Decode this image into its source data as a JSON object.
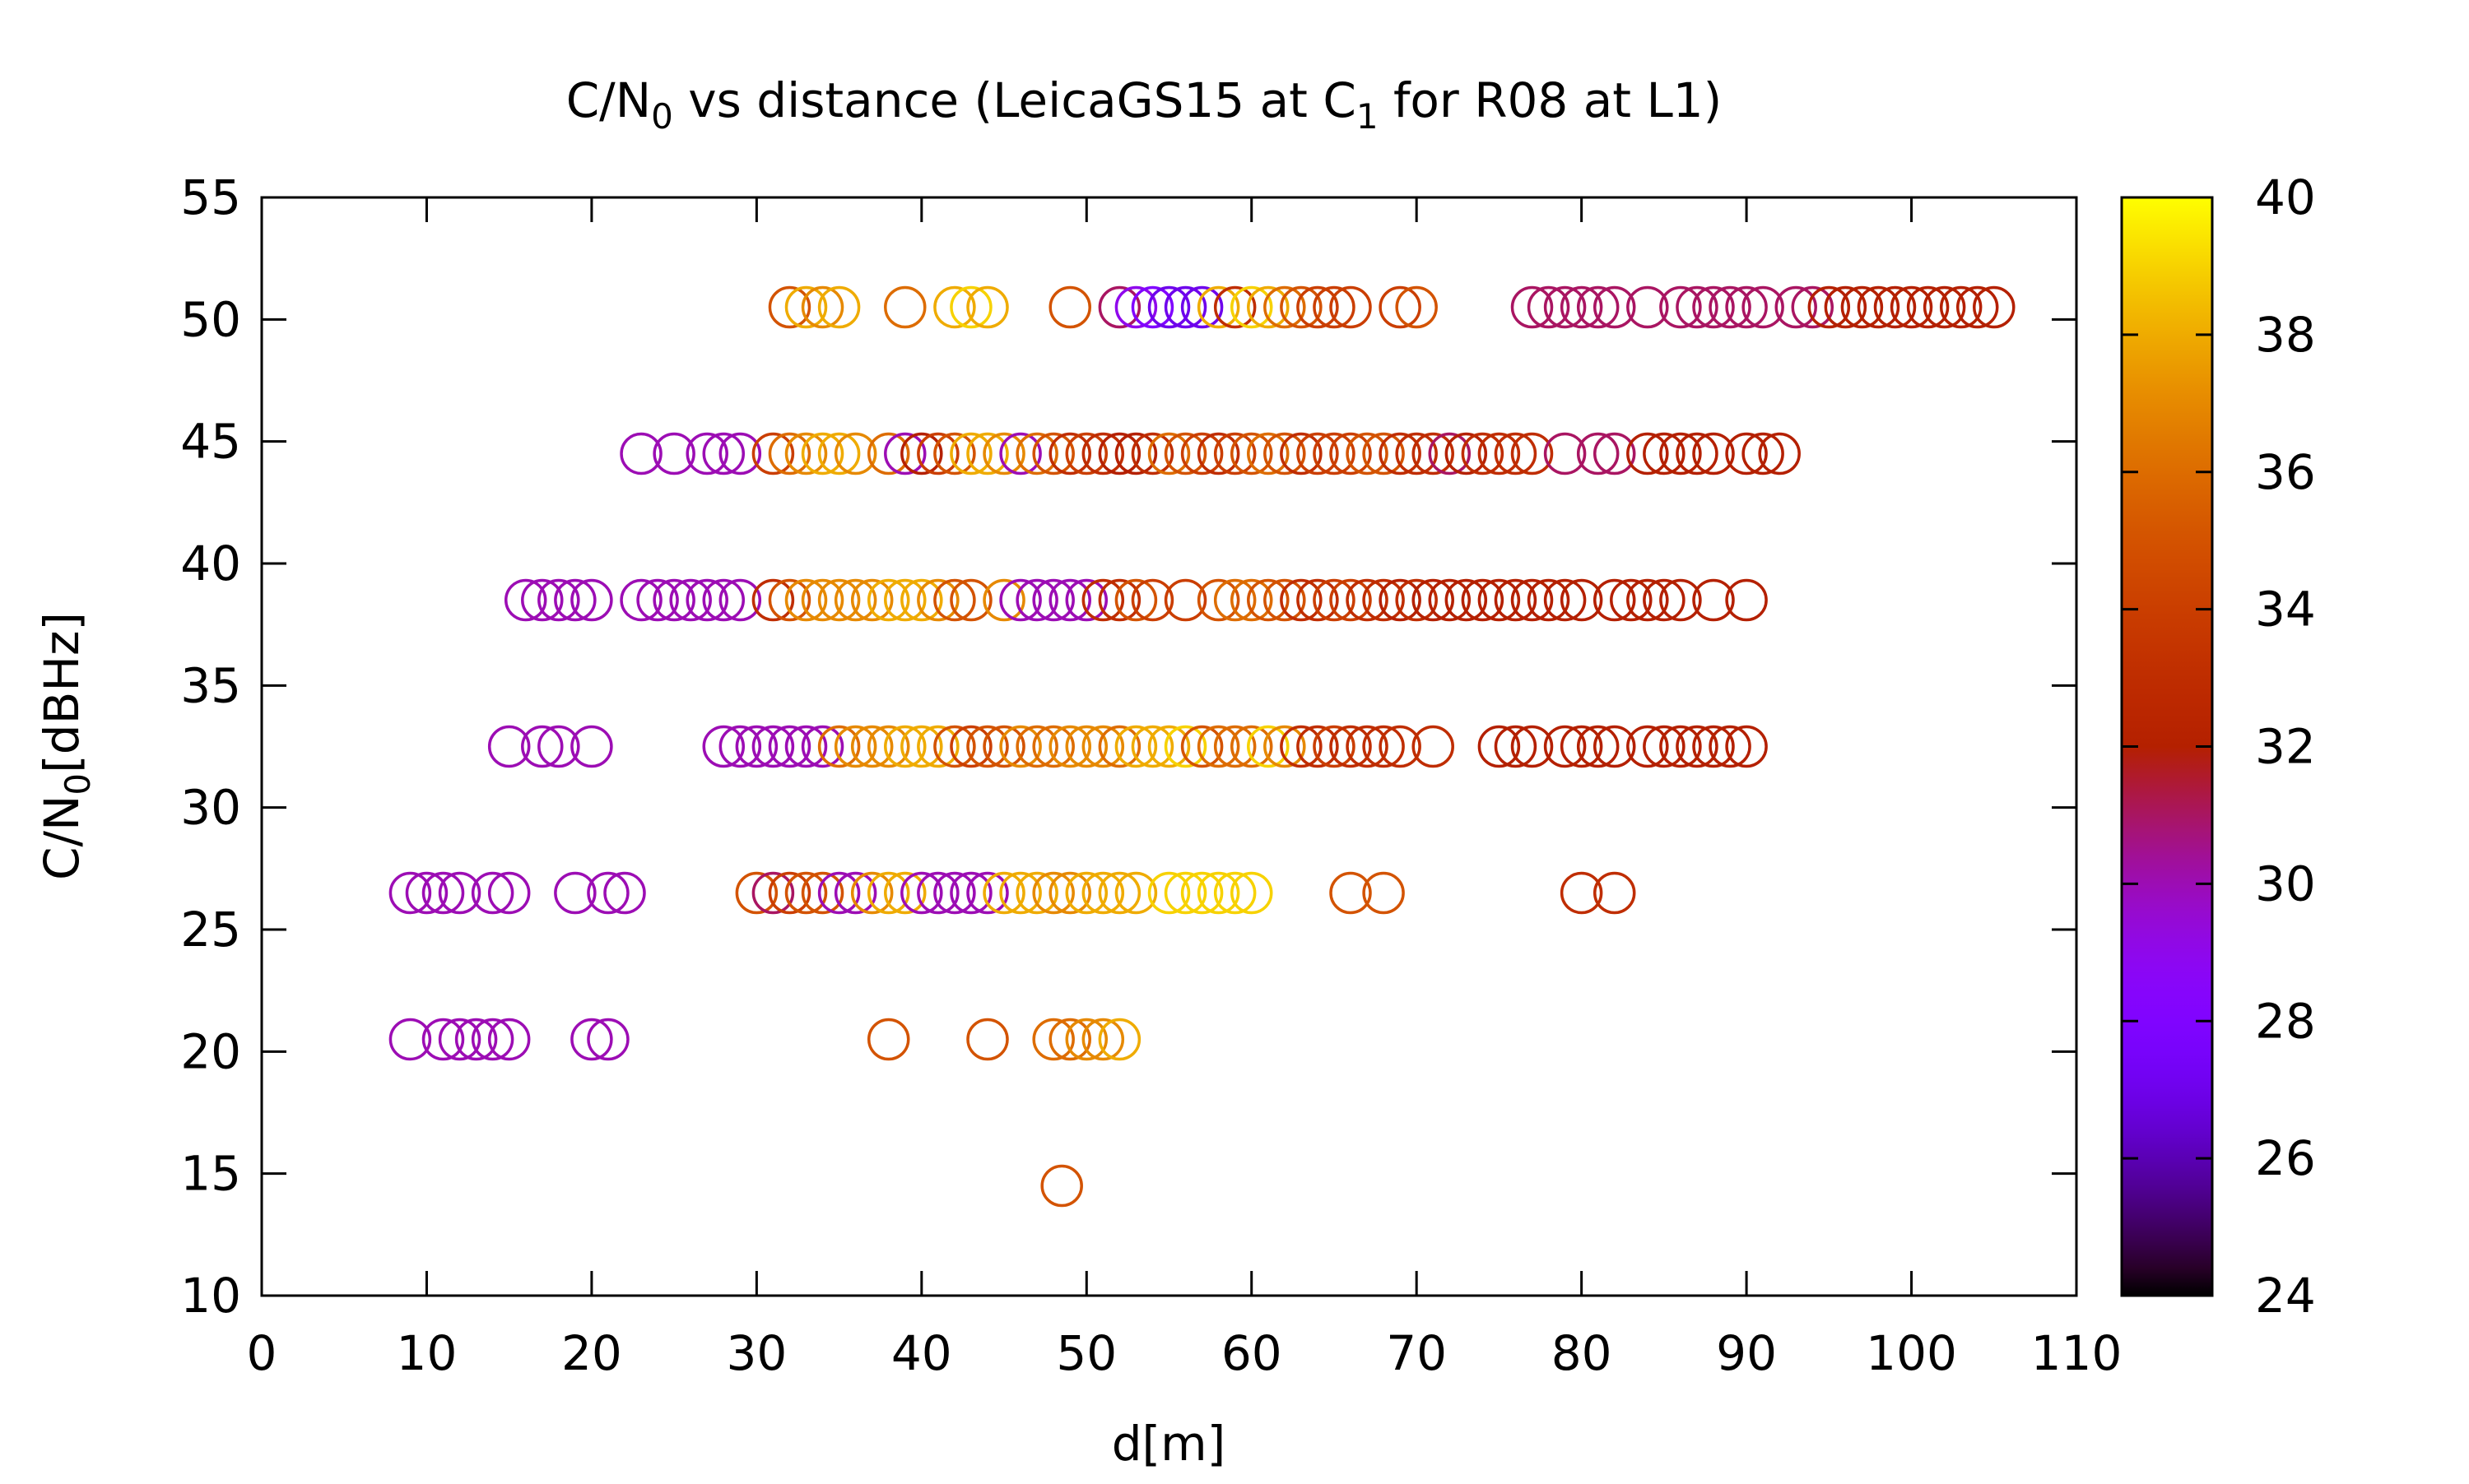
{
  "chart_data": {
    "type": "scatter",
    "title": {
      "pre": "C/N",
      "sub": "0",
      "mid": " vs distance (LeicaGS15 at C",
      "sub2": "1",
      "post": " for R08 at L1)"
    },
    "xlabel": "d[m]",
    "ylabel": {
      "pre": "C/N",
      "sub": "0",
      "post": "[dBHz]"
    },
    "xlim": [
      0,
      110
    ],
    "ylim": [
      10,
      55
    ],
    "xticks": [
      0,
      10,
      20,
      30,
      40,
      50,
      60,
      70,
      80,
      90,
      100,
      110
    ],
    "yticks": [
      10,
      15,
      20,
      25,
      30,
      35,
      40,
      45,
      50,
      55
    ],
    "colorbar": {
      "range": [
        24,
        40
      ],
      "ticks": [
        24,
        26,
        28,
        30,
        32,
        34,
        36,
        38,
        40
      ],
      "palette": "gnuplot"
    },
    "marker": "open-circle",
    "grid": false,
    "legend": "none",
    "rows": [
      {
        "y": 50.5,
        "points": [
          [
            32,
            35
          ],
          [
            33,
            38
          ],
          [
            34,
            37
          ],
          [
            35,
            38
          ],
          [
            39,
            36
          ],
          [
            42,
            38
          ],
          [
            43,
            39
          ],
          [
            44,
            38
          ],
          [
            49,
            35
          ],
          [
            52,
            31
          ],
          [
            53,
            29
          ],
          [
            54,
            28
          ],
          [
            55,
            27
          ],
          [
            56,
            27
          ],
          [
            57,
            27
          ],
          [
            58,
            38
          ],
          [
            59,
            33
          ],
          [
            60,
            39
          ],
          [
            61,
            38
          ],
          [
            62,
            36
          ],
          [
            63,
            35
          ],
          [
            64,
            34
          ],
          [
            65,
            34
          ],
          [
            66,
            34
          ],
          [
            69,
            34
          ],
          [
            70,
            35
          ],
          [
            77,
            31
          ],
          [
            78,
            31
          ],
          [
            79,
            31
          ],
          [
            80,
            31
          ],
          [
            81,
            31
          ],
          [
            82,
            31
          ],
          [
            84,
            31
          ],
          [
            86,
            31
          ],
          [
            87,
            31
          ],
          [
            88,
            31
          ],
          [
            89,
            31
          ],
          [
            90,
            31
          ],
          [
            91,
            31
          ],
          [
            93,
            31
          ],
          [
            94,
            31
          ],
          [
            95,
            32
          ],
          [
            96,
            32
          ],
          [
            97,
            32
          ],
          [
            98,
            32
          ],
          [
            99,
            32
          ],
          [
            100,
            32
          ],
          [
            101,
            32
          ],
          [
            102,
            32
          ],
          [
            103,
            32
          ],
          [
            104,
            32
          ],
          [
            105,
            32
          ]
        ]
      },
      {
        "y": 44.5,
        "points": [
          [
            23,
            30
          ],
          [
            25,
            30
          ],
          [
            27,
            30
          ],
          [
            28,
            30
          ],
          [
            29,
            30
          ],
          [
            31,
            34
          ],
          [
            32,
            36
          ],
          [
            33,
            37
          ],
          [
            34,
            38
          ],
          [
            35,
            38
          ],
          [
            36,
            37
          ],
          [
            38,
            36
          ],
          [
            39,
            30
          ],
          [
            40,
            32
          ],
          [
            41,
            34
          ],
          [
            42,
            35
          ],
          [
            43,
            38
          ],
          [
            44,
            38
          ],
          [
            45,
            37
          ],
          [
            46,
            30
          ],
          [
            47,
            36
          ],
          [
            48,
            35
          ],
          [
            49,
            33
          ],
          [
            50,
            34
          ],
          [
            51,
            33
          ],
          [
            52,
            32
          ],
          [
            53,
            32
          ],
          [
            54,
            33
          ],
          [
            55,
            36
          ],
          [
            56,
            35
          ],
          [
            57,
            34
          ],
          [
            58,
            33
          ],
          [
            59,
            34
          ],
          [
            60,
            35
          ],
          [
            61,
            36
          ],
          [
            62,
            35
          ],
          [
            63,
            33
          ],
          [
            64,
            34
          ],
          [
            65,
            34
          ],
          [
            66,
            34
          ],
          [
            67,
            35
          ],
          [
            68,
            35
          ],
          [
            69,
            33
          ],
          [
            70,
            33
          ],
          [
            71,
            33
          ],
          [
            72,
            31
          ],
          [
            73,
            32
          ],
          [
            74,
            33
          ],
          [
            75,
            33
          ],
          [
            76,
            33
          ],
          [
            77,
            33
          ],
          [
            79,
            31
          ],
          [
            81,
            31
          ],
          [
            82,
            31
          ],
          [
            84,
            32
          ],
          [
            85,
            32
          ],
          [
            86,
            32
          ],
          [
            87,
            32
          ],
          [
            88,
            32
          ],
          [
            90,
            32
          ],
          [
            91,
            32
          ],
          [
            92,
            32
          ]
        ]
      },
      {
        "y": 38.5,
        "points": [
          [
            16,
            30
          ],
          [
            17,
            30
          ],
          [
            18,
            30
          ],
          [
            19,
            30
          ],
          [
            20,
            30
          ],
          [
            23,
            30
          ],
          [
            24,
            30
          ],
          [
            25,
            30
          ],
          [
            26,
            30
          ],
          [
            27,
            30
          ],
          [
            28,
            30
          ],
          [
            29,
            30
          ],
          [
            31,
            33
          ],
          [
            32,
            35
          ],
          [
            33,
            37
          ],
          [
            34,
            37
          ],
          [
            35,
            37
          ],
          [
            36,
            37
          ],
          [
            37,
            37
          ],
          [
            38,
            38
          ],
          [
            39,
            38
          ],
          [
            40,
            38
          ],
          [
            41,
            37
          ],
          [
            42,
            35
          ],
          [
            43,
            35
          ],
          [
            45,
            37
          ],
          [
            46,
            30
          ],
          [
            47,
            30
          ],
          [
            48,
            30
          ],
          [
            49,
            30
          ],
          [
            50,
            30
          ],
          [
            51,
            33
          ],
          [
            52,
            33
          ],
          [
            53,
            35
          ],
          [
            54,
            34
          ],
          [
            56,
            34
          ],
          [
            58,
            35
          ],
          [
            59,
            36
          ],
          [
            60,
            36
          ],
          [
            61,
            35
          ],
          [
            62,
            35
          ],
          [
            63,
            33
          ],
          [
            64,
            33
          ],
          [
            65,
            34
          ],
          [
            66,
            34
          ],
          [
            67,
            33
          ],
          [
            68,
            33
          ],
          [
            69,
            32
          ],
          [
            70,
            33
          ],
          [
            71,
            32
          ],
          [
            72,
            32
          ],
          [
            73,
            32
          ],
          [
            74,
            32
          ],
          [
            75,
            32
          ],
          [
            76,
            32
          ],
          [
            77,
            32
          ],
          [
            78,
            32
          ],
          [
            79,
            32
          ],
          [
            80,
            32
          ],
          [
            82,
            32
          ],
          [
            83,
            32
          ],
          [
            84,
            32
          ],
          [
            85,
            32
          ],
          [
            86,
            32
          ],
          [
            88,
            32
          ],
          [
            90,
            32
          ]
        ]
      },
      {
        "y": 32.5,
        "points": [
          [
            15,
            30
          ],
          [
            17,
            30
          ],
          [
            18,
            30
          ],
          [
            20,
            30
          ],
          [
            28,
            30
          ],
          [
            29,
            30
          ],
          [
            30,
            30
          ],
          [
            31,
            30
          ],
          [
            32,
            30
          ],
          [
            33,
            30
          ],
          [
            34,
            30
          ],
          [
            35,
            36
          ],
          [
            36,
            37
          ],
          [
            37,
            37
          ],
          [
            38,
            37
          ],
          [
            39,
            38
          ],
          [
            40,
            38
          ],
          [
            41,
            38
          ],
          [
            42,
            35
          ],
          [
            43,
            34
          ],
          [
            44,
            35
          ],
          [
            45,
            35
          ],
          [
            46,
            37
          ],
          [
            47,
            36
          ],
          [
            48,
            36
          ],
          [
            49,
            37
          ],
          [
            50,
            37
          ],
          [
            51,
            37
          ],
          [
            52,
            36
          ],
          [
            53,
            38
          ],
          [
            54,
            38
          ],
          [
            55,
            38
          ],
          [
            56,
            39
          ],
          [
            57,
            35
          ],
          [
            58,
            36
          ],
          [
            59,
            36
          ],
          [
            60,
            36
          ],
          [
            61,
            39
          ],
          [
            62,
            37
          ],
          [
            63,
            33
          ],
          [
            64,
            33
          ],
          [
            65,
            34
          ],
          [
            66,
            33
          ],
          [
            67,
            33
          ],
          [
            68,
            33
          ],
          [
            69,
            33
          ],
          [
            71,
            33
          ],
          [
            75,
            32
          ],
          [
            76,
            32
          ],
          [
            77,
            32
          ],
          [
            79,
            32
          ],
          [
            80,
            32
          ],
          [
            81,
            32
          ],
          [
            82,
            32
          ],
          [
            84,
            32
          ],
          [
            85,
            32
          ],
          [
            86,
            32
          ],
          [
            87,
            32
          ],
          [
            88,
            32
          ],
          [
            89,
            32
          ],
          [
            90,
            32
          ]
        ]
      },
      {
        "y": 26.5,
        "points": [
          [
            9,
            30
          ],
          [
            10,
            30
          ],
          [
            11,
            30
          ],
          [
            12,
            30
          ],
          [
            14,
            30
          ],
          [
            15,
            30
          ],
          [
            19,
            30
          ],
          [
            21,
            30
          ],
          [
            22,
            30
          ],
          [
            30,
            35
          ],
          [
            31,
            31
          ],
          [
            32,
            34
          ],
          [
            33,
            35
          ],
          [
            34,
            35
          ],
          [
            35,
            30
          ],
          [
            36,
            30
          ],
          [
            37,
            37
          ],
          [
            38,
            38
          ],
          [
            39,
            38
          ],
          [
            40,
            30
          ],
          [
            41,
            30
          ],
          [
            42,
            30
          ],
          [
            43,
            30
          ],
          [
            44,
            30
          ],
          [
            45,
            38
          ],
          [
            46,
            38
          ],
          [
            47,
            38
          ],
          [
            48,
            37
          ],
          [
            49,
            37
          ],
          [
            50,
            38
          ],
          [
            51,
            38
          ],
          [
            52,
            38
          ],
          [
            53,
            38
          ],
          [
            55,
            39
          ],
          [
            56,
            39
          ],
          [
            57,
            39
          ],
          [
            58,
            39
          ],
          [
            59,
            39
          ],
          [
            60,
            39
          ],
          [
            66,
            35
          ],
          [
            68,
            35
          ],
          [
            80,
            33
          ],
          [
            82,
            33
          ]
        ]
      },
      {
        "y": 20.5,
        "points": [
          [
            9,
            30
          ],
          [
            11,
            30
          ],
          [
            12,
            30
          ],
          [
            13,
            30
          ],
          [
            14,
            30
          ],
          [
            15,
            30
          ],
          [
            20,
            30
          ],
          [
            21,
            30
          ],
          [
            38,
            35
          ],
          [
            44,
            35
          ],
          [
            48,
            36
          ],
          [
            49,
            36
          ],
          [
            50,
            37
          ],
          [
            51,
            37
          ],
          [
            52,
            38
          ]
        ]
      },
      {
        "y": 14.5,
        "points": [
          [
            48.5,
            35
          ]
        ]
      }
    ]
  }
}
